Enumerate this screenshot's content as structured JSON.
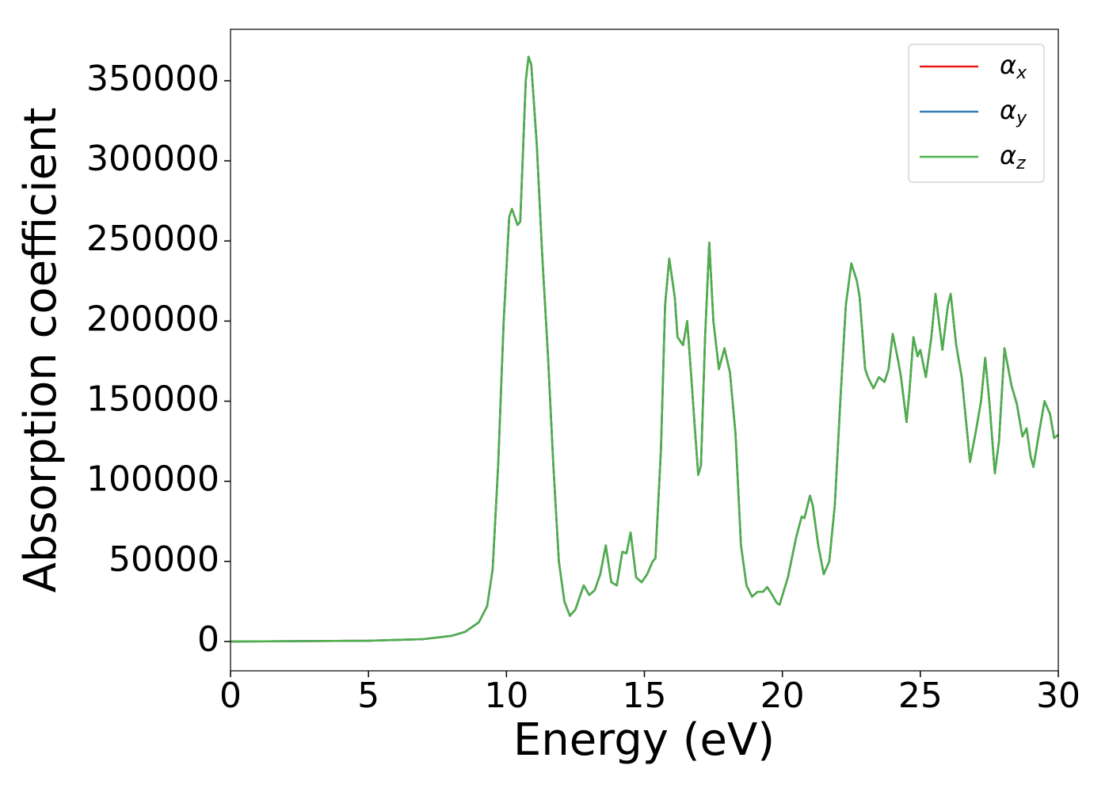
{
  "chart_data": {
    "type": "line",
    "xlabel": "Energy (eV)",
    "ylabel": "Absorption coefficient",
    "xlim": [
      0,
      30
    ],
    "xticks": [
      0,
      5,
      10,
      15,
      20,
      25,
      30
    ],
    "ylim": [
      -18300,
      382100
    ],
    "yticks": [
      0,
      50000,
      100000,
      150000,
      200000,
      250000,
      300000,
      350000
    ],
    "legend": "upper right",
    "x": [
      0,
      5,
      7,
      8,
      8.5,
      9,
      9.3,
      9.5,
      9.7,
      9.9,
      10.1,
      10.2,
      10.4,
      10.5,
      10.7,
      10.8,
      10.9,
      11.1,
      11.3,
      11.5,
      11.7,
      11.9,
      12.1,
      12.3,
      12.5,
      12.8,
      13.0,
      13.2,
      13.4,
      13.6,
      13.8,
      14.0,
      14.2,
      14.35,
      14.5,
      14.7,
      14.9,
      15.1,
      15.3,
      15.4,
      15.6,
      15.75,
      15.9,
      16.1,
      16.2,
      16.4,
      16.55,
      16.7,
      16.8,
      16.95,
      17.05,
      17.2,
      17.35,
      17.5,
      17.7,
      17.9,
      18.1,
      18.3,
      18.5,
      18.7,
      18.9,
      19.1,
      19.3,
      19.45,
      19.6,
      19.8,
      19.9,
      20.2,
      20.5,
      20.7,
      20.8,
      21.0,
      21.1,
      21.3,
      21.5,
      21.7,
      21.9,
      22.1,
      22.3,
      22.5,
      22.7,
      22.8,
      23.0,
      23.1,
      23.3,
      23.5,
      23.7,
      23.85,
      24.0,
      24.2,
      24.3,
      24.5,
      24.6,
      24.75,
      24.9,
      25.0,
      25.2,
      25.4,
      25.55,
      25.8,
      26.0,
      26.1,
      26.3,
      26.5,
      26.7,
      26.8,
      27.0,
      27.2,
      27.35,
      27.5,
      27.7,
      27.85,
      28.05,
      28.3,
      28.5,
      28.7,
      28.85,
      29.0,
      29.1,
      29.3,
      29.5,
      29.7,
      29.85,
      30.0
    ],
    "series": [
      {
        "name": "αx",
        "color": "#e41a1c",
        "values": [
          0,
          500,
          1500,
          3500,
          6000,
          12000,
          22000,
          45000,
          110000,
          200000,
          265000,
          270000,
          260000,
          262000,
          350000,
          365000,
          360000,
          310000,
          240000,
          180000,
          110000,
          50000,
          25000,
          16000,
          20000,
          35000,
          29000,
          32000,
          42000,
          60000,
          37000,
          35000,
          56000,
          55000,
          68000,
          40000,
          37000,
          42000,
          50000,
          52000,
          120000,
          210000,
          239000,
          215000,
          190000,
          185000,
          200000,
          165000,
          140000,
          104000,
          110000,
          190000,
          249000,
          200000,
          170000,
          183000,
          168000,
          130000,
          60000,
          35000,
          28000,
          31000,
          31000,
          34000,
          30000,
          24000,
          23000,
          40000,
          65000,
          78000,
          77000,
          91000,
          85000,
          60000,
          42000,
          50000,
          85000,
          150000,
          210000,
          236000,
          225000,
          215000,
          170000,
          165000,
          158000,
          165000,
          162000,
          170000,
          192000,
          175000,
          165000,
          137000,
          155000,
          190000,
          178000,
          182000,
          165000,
          190000,
          217000,
          182000,
          210000,
          217000,
          185000,
          165000,
          130000,
          112000,
          130000,
          150000,
          177000,
          150000,
          105000,
          125000,
          183000,
          160000,
          148000,
          128000,
          133000,
          115000,
          109000,
          130000,
          150000,
          142000,
          127000,
          129000
        ]
      },
      {
        "name": "αy",
        "color": "#377eb8",
        "values": [
          0,
          500,
          1500,
          3500,
          6000,
          12000,
          22000,
          45000,
          110000,
          200000,
          265000,
          270000,
          260000,
          262000,
          350000,
          365000,
          360000,
          310000,
          240000,
          180000,
          110000,
          50000,
          25000,
          16000,
          20000,
          35000,
          29000,
          32000,
          42000,
          60000,
          37000,
          35000,
          56000,
          55000,
          68000,
          40000,
          37000,
          42000,
          50000,
          52000,
          120000,
          210000,
          239000,
          215000,
          190000,
          185000,
          200000,
          165000,
          140000,
          104000,
          110000,
          190000,
          249000,
          200000,
          170000,
          183000,
          168000,
          130000,
          60000,
          35000,
          28000,
          31000,
          31000,
          34000,
          30000,
          24000,
          23000,
          40000,
          65000,
          78000,
          77000,
          91000,
          85000,
          60000,
          42000,
          50000,
          85000,
          150000,
          210000,
          236000,
          225000,
          215000,
          170000,
          165000,
          158000,
          165000,
          162000,
          170000,
          192000,
          175000,
          165000,
          137000,
          155000,
          190000,
          178000,
          182000,
          165000,
          190000,
          217000,
          182000,
          210000,
          217000,
          185000,
          165000,
          130000,
          112000,
          130000,
          150000,
          177000,
          150000,
          105000,
          125000,
          183000,
          160000,
          148000,
          128000,
          133000,
          115000,
          109000,
          130000,
          150000,
          142000,
          127000,
          129000
        ]
      },
      {
        "name": "αz",
        "color": "#4daf4a",
        "values": [
          0,
          500,
          1500,
          3500,
          6000,
          12000,
          22000,
          45000,
          110000,
          200000,
          265000,
          270000,
          260000,
          262000,
          350000,
          365000,
          360000,
          310000,
          240000,
          180000,
          110000,
          50000,
          25000,
          16000,
          20000,
          35000,
          29000,
          32000,
          42000,
          60000,
          37000,
          35000,
          56000,
          55000,
          68000,
          40000,
          37000,
          42000,
          50000,
          52000,
          120000,
          210000,
          239000,
          215000,
          190000,
          185000,
          200000,
          165000,
          140000,
          104000,
          110000,
          190000,
          249000,
          200000,
          170000,
          183000,
          168000,
          130000,
          60000,
          35000,
          28000,
          31000,
          31000,
          34000,
          30000,
          24000,
          23000,
          40000,
          65000,
          78000,
          77000,
          91000,
          85000,
          60000,
          42000,
          50000,
          85000,
          150000,
          210000,
          236000,
          225000,
          215000,
          170000,
          165000,
          158000,
          165000,
          162000,
          170000,
          192000,
          175000,
          165000,
          137000,
          155000,
          190000,
          178000,
          182000,
          165000,
          190000,
          217000,
          182000,
          210000,
          217000,
          185000,
          165000,
          130000,
          112000,
          130000,
          150000,
          177000,
          150000,
          105000,
          125000,
          183000,
          160000,
          148000,
          128000,
          133000,
          115000,
          109000,
          130000,
          150000,
          142000,
          127000,
          129000
        ]
      }
    ]
  }
}
